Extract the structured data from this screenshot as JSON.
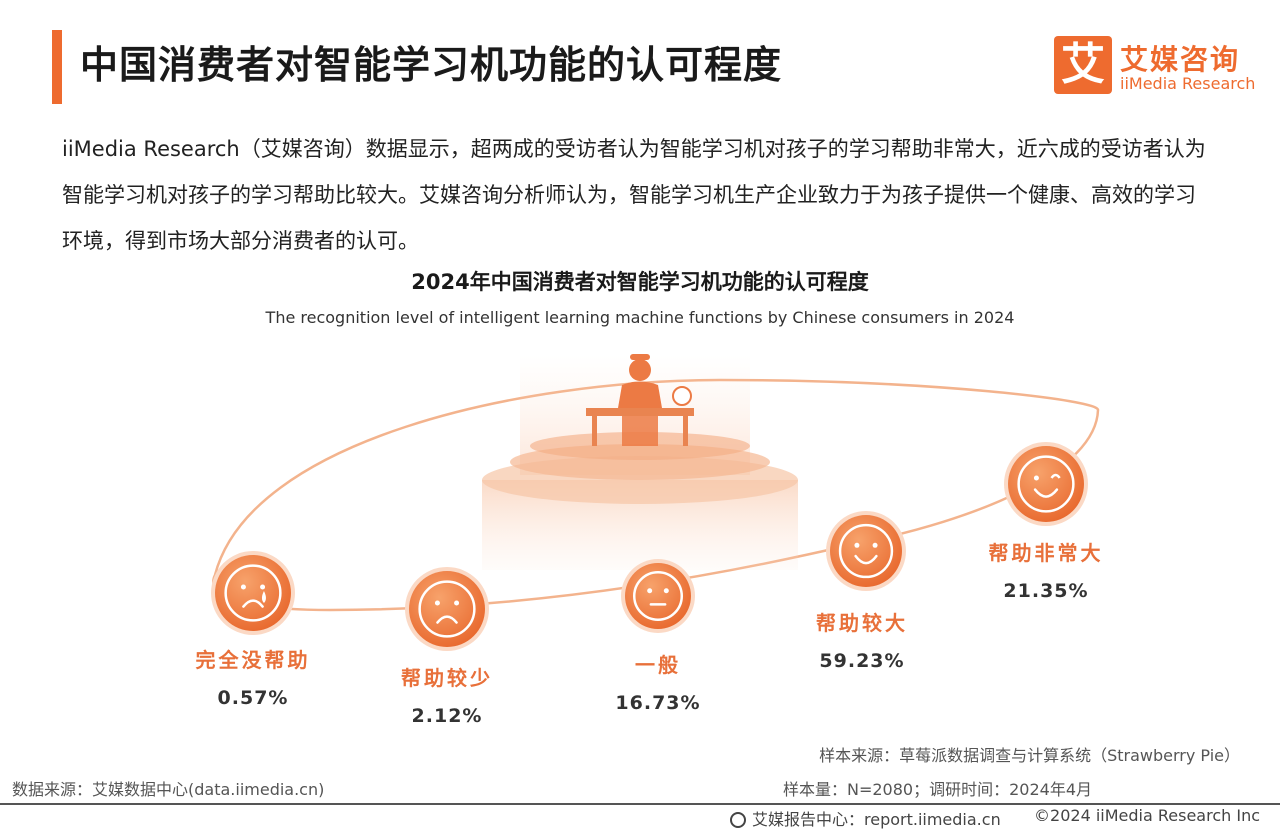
{
  "header": {
    "title": "中国消费者对智能学习机功能的认可程度",
    "logo_mark": "艾",
    "logo_cn": "艾媒咨询",
    "logo_en": "iiMedia Research"
  },
  "description": "iiMedia Research（艾媒咨询）数据显示，超两成的受访者认为智能学习机对孩子的学习帮助非常大，近六成的受访者认为智能学习机对孩子的学习帮助比较大。艾媒咨询分析师认为，智能学习机生产企业致力于为孩子提供一个健康、高效的学习环境，得到市场大部分消费者的认可。",
  "colors": {
    "accent": "#ee6b2f",
    "label": "#e8703a"
  },
  "chart_data": {
    "type": "table",
    "title": "2024年中国消费者对智能学习机功能的认可程度",
    "subtitle": "The recognition level of intelligent learning machine functions by Chinese consumers in 2024",
    "categories": [
      "完全没帮助",
      "帮助较少",
      "一般",
      "帮助较大",
      "帮助非常大"
    ],
    "values": [
      0.57,
      2.12,
      16.73,
      59.23,
      21.35
    ],
    "value_labels": [
      "0.57%",
      "2.12%",
      "16.73%",
      "59.23%",
      "21.35%"
    ],
    "icons": [
      "crying-face-icon",
      "sad-face-icon",
      "neutral-face-icon",
      "smiling-face-icon",
      "winking-face-icon"
    ]
  },
  "footer": {
    "data_source": "数据来源：艾媒数据中心(data.iimedia.cn)",
    "sample_source": "样本来源：草莓派数据调查与计算系统（Strawberry Pie）",
    "sample_size": "样本量：N=2080；调研时间：2024年4月",
    "report_center": "艾媒报告中心：report.iimedia.cn",
    "copyright": "©2024  iiMedia Research  Inc"
  }
}
